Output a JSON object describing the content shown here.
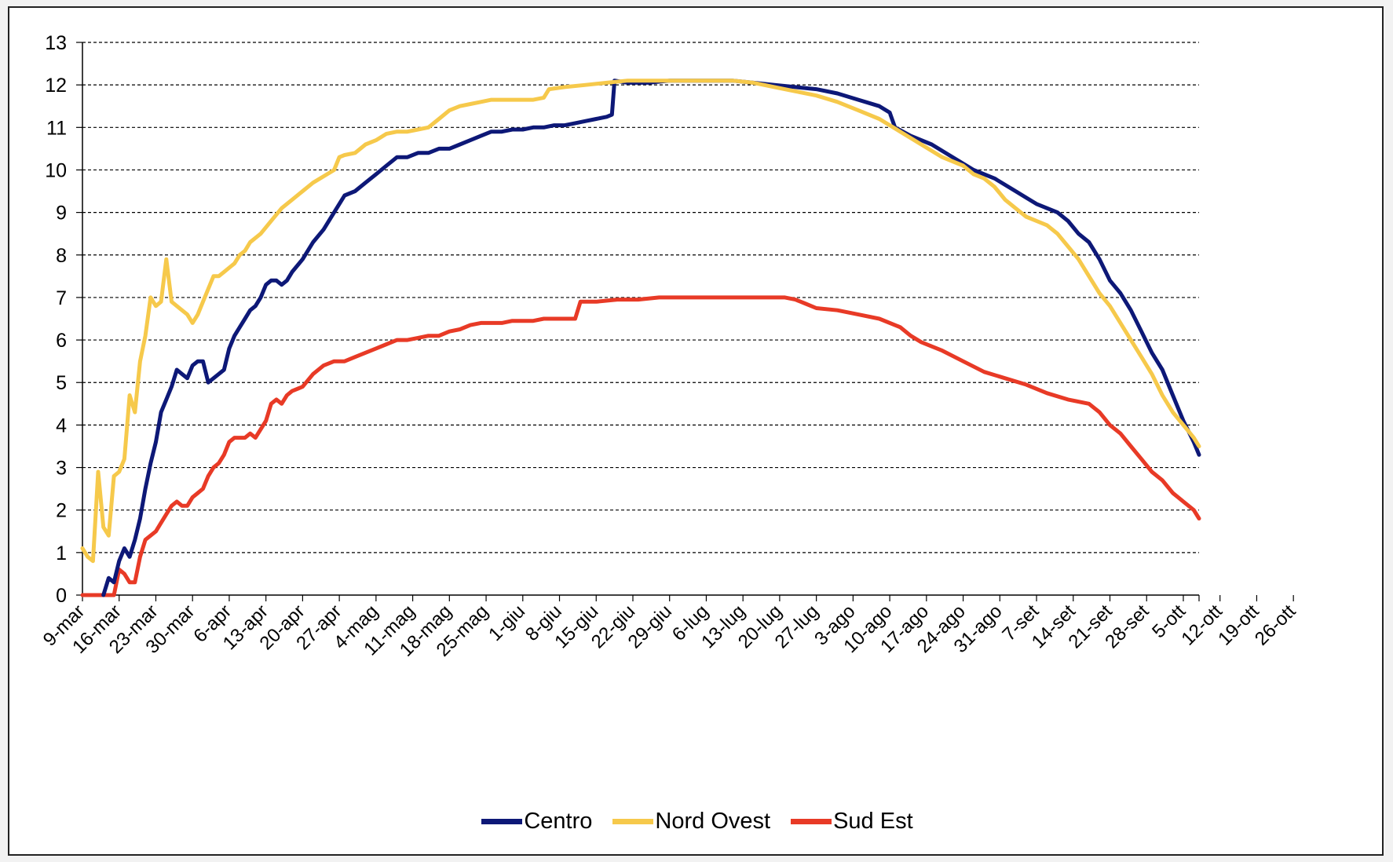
{
  "chart_data": {
    "type": "line",
    "title": "",
    "xlabel": "",
    "ylabel": "",
    "ylim": [
      0,
      13
    ],
    "yticks": [
      0,
      1,
      2,
      3,
      4,
      5,
      6,
      7,
      8,
      9,
      10,
      11,
      12,
      13
    ],
    "grid": "horizontal dashed",
    "legend_position": "bottom",
    "x_start": "9-mar",
    "x_end": "31-ott",
    "xtick_labels": [
      "9-mar",
      "16-mar",
      "23-mar",
      "30-mar",
      "6-apr",
      "13-apr",
      "20-apr",
      "27-apr",
      "4-mag",
      "11-mag",
      "18-mag",
      "25-mag",
      "1-giu",
      "8-giu",
      "15-giu",
      "22-giu",
      "29-giu",
      "6-lug",
      "13-lug",
      "20-lug",
      "27-lug",
      "3-ago",
      "10-ago",
      "17-ago",
      "24-ago",
      "31-ago",
      "7-set",
      "14-set",
      "21-set",
      "28-set",
      "5-ott",
      "12-ott",
      "19-ott",
      "26-ott"
    ],
    "series": [
      {
        "name": "Centro",
        "color": "#0d1877",
        "points": [
          [
            4,
            0
          ],
          [
            5,
            0.4
          ],
          [
            6,
            0.3
          ],
          [
            7,
            0.8
          ],
          [
            8,
            1.1
          ],
          [
            9,
            0.9
          ],
          [
            10,
            1.3
          ],
          [
            11,
            1.8
          ],
          [
            12,
            2.5
          ],
          [
            13,
            3.1
          ],
          [
            14,
            3.6
          ],
          [
            15,
            4.3
          ],
          [
            16,
            4.6
          ],
          [
            17,
            4.9
          ],
          [
            18,
            5.3
          ],
          [
            19,
            5.2
          ],
          [
            20,
            5.1
          ],
          [
            21,
            5.4
          ],
          [
            22,
            5.5
          ],
          [
            23,
            5.5
          ],
          [
            24,
            5.0
          ],
          [
            25,
            5.1
          ],
          [
            26,
            5.2
          ],
          [
            27,
            5.3
          ],
          [
            28,
            5.8
          ],
          [
            29,
            6.1
          ],
          [
            30,
            6.3
          ],
          [
            31,
            6.5
          ],
          [
            32,
            6.7
          ],
          [
            33,
            6.8
          ],
          [
            34,
            7.0
          ],
          [
            35,
            7.3
          ],
          [
            36,
            7.4
          ],
          [
            37,
            7.4
          ],
          [
            38,
            7.3
          ],
          [
            39,
            7.4
          ],
          [
            40,
            7.6
          ],
          [
            42,
            7.9
          ],
          [
            44,
            8.3
          ],
          [
            46,
            8.6
          ],
          [
            48,
            9.0
          ],
          [
            50,
            9.4
          ],
          [
            52,
            9.5
          ],
          [
            54,
            9.7
          ],
          [
            56,
            9.9
          ],
          [
            58,
            10.1
          ],
          [
            60,
            10.3
          ],
          [
            62,
            10.3
          ],
          [
            64,
            10.4
          ],
          [
            66,
            10.4
          ],
          [
            68,
            10.5
          ],
          [
            70,
            10.5
          ],
          [
            72,
            10.6
          ],
          [
            74,
            10.7
          ],
          [
            76,
            10.8
          ],
          [
            78,
            10.9
          ],
          [
            80,
            10.9
          ],
          [
            82,
            10.95
          ],
          [
            84,
            10.95
          ],
          [
            86,
            11.0
          ],
          [
            88,
            11.0
          ],
          [
            90,
            11.05
          ],
          [
            92,
            11.05
          ],
          [
            94,
            11.1
          ],
          [
            96,
            11.15
          ],
          [
            98,
            11.2
          ],
          [
            100,
            11.25
          ],
          [
            101,
            11.3
          ],
          [
            101.5,
            12.1
          ],
          [
            104,
            12.05
          ],
          [
            108,
            12.05
          ],
          [
            112,
            12.1
          ],
          [
            116,
            12.1
          ],
          [
            120,
            12.1
          ],
          [
            124,
            12.1
          ],
          [
            128,
            12.05
          ],
          [
            132,
            12.0
          ],
          [
            136,
            11.95
          ],
          [
            140,
            11.9
          ],
          [
            144,
            11.8
          ],
          [
            148,
            11.65
          ],
          [
            152,
            11.5
          ],
          [
            154,
            11.35
          ],
          [
            155,
            11.0
          ],
          [
            158,
            10.8
          ],
          [
            162,
            10.6
          ],
          [
            166,
            10.3
          ],
          [
            170,
            10.0
          ],
          [
            174,
            9.8
          ],
          [
            178,
            9.5
          ],
          [
            182,
            9.2
          ],
          [
            186,
            9.0
          ],
          [
            188,
            8.8
          ],
          [
            190,
            8.5
          ],
          [
            192,
            8.3
          ],
          [
            194,
            7.9
          ],
          [
            196,
            7.4
          ],
          [
            198,
            7.1
          ],
          [
            200,
            6.7
          ],
          [
            202,
            6.2
          ],
          [
            204,
            5.7
          ],
          [
            206,
            5.3
          ],
          [
            208,
            4.7
          ],
          [
            210,
            4.1
          ],
          [
            212,
            3.6
          ],
          [
            213,
            3.3
          ]
        ]
      },
      {
        "name": "Nord Ovest",
        "color": "#f6c94b",
        "points": [
          [
            0,
            1.1
          ],
          [
            1,
            0.9
          ],
          [
            2,
            0.8
          ],
          [
            3,
            2.9
          ],
          [
            4,
            1.6
          ],
          [
            5,
            1.4
          ],
          [
            6,
            2.8
          ],
          [
            7,
            2.9
          ],
          [
            8,
            3.2
          ],
          [
            9,
            4.7
          ],
          [
            10,
            4.3
          ],
          [
            11,
            5.5
          ],
          [
            12,
            6.1
          ],
          [
            13,
            7.0
          ],
          [
            14,
            6.8
          ],
          [
            15,
            6.9
          ],
          [
            16,
            7.9
          ],
          [
            17,
            6.9
          ],
          [
            18,
            6.8
          ],
          [
            19,
            6.7
          ],
          [
            20,
            6.6
          ],
          [
            21,
            6.4
          ],
          [
            22,
            6.6
          ],
          [
            23,
            6.9
          ],
          [
            24,
            7.2
          ],
          [
            25,
            7.5
          ],
          [
            26,
            7.5
          ],
          [
            27,
            7.6
          ],
          [
            28,
            7.7
          ],
          [
            29,
            7.8
          ],
          [
            30,
            8.0
          ],
          [
            31,
            8.1
          ],
          [
            32,
            8.3
          ],
          [
            34,
            8.5
          ],
          [
            36,
            8.8
          ],
          [
            38,
            9.1
          ],
          [
            40,
            9.3
          ],
          [
            42,
            9.5
          ],
          [
            44,
            9.7
          ],
          [
            46,
            9.85
          ],
          [
            48,
            10.0
          ],
          [
            49,
            10.3
          ],
          [
            50,
            10.35
          ],
          [
            52,
            10.4
          ],
          [
            54,
            10.6
          ],
          [
            56,
            10.7
          ],
          [
            58,
            10.85
          ],
          [
            60,
            10.9
          ],
          [
            62,
            10.9
          ],
          [
            64,
            10.95
          ],
          [
            66,
            11.0
          ],
          [
            68,
            11.2
          ],
          [
            70,
            11.4
          ],
          [
            72,
            11.5
          ],
          [
            74,
            11.55
          ],
          [
            76,
            11.6
          ],
          [
            78,
            11.65
          ],
          [
            80,
            11.65
          ],
          [
            82,
            11.65
          ],
          [
            84,
            11.65
          ],
          [
            86,
            11.65
          ],
          [
            88,
            11.7
          ],
          [
            89,
            11.9
          ],
          [
            92,
            11.95
          ],
          [
            96,
            12.0
          ],
          [
            100,
            12.05
          ],
          [
            104,
            12.1
          ],
          [
            108,
            12.1
          ],
          [
            112,
            12.1
          ],
          [
            116,
            12.1
          ],
          [
            120,
            12.1
          ],
          [
            124,
            12.1
          ],
          [
            128,
            12.05
          ],
          [
            132,
            11.95
          ],
          [
            136,
            11.85
          ],
          [
            140,
            11.75
          ],
          [
            144,
            11.6
          ],
          [
            148,
            11.4
          ],
          [
            152,
            11.2
          ],
          [
            156,
            10.9
          ],
          [
            160,
            10.6
          ],
          [
            164,
            10.3
          ],
          [
            168,
            10.1
          ],
          [
            170,
            9.9
          ],
          [
            172,
            9.8
          ],
          [
            174,
            9.6
          ],
          [
            176,
            9.3
          ],
          [
            178,
            9.1
          ],
          [
            180,
            8.9
          ],
          [
            182,
            8.8
          ],
          [
            184,
            8.7
          ],
          [
            186,
            8.5
          ],
          [
            188,
            8.2
          ],
          [
            190,
            7.9
          ],
          [
            192,
            7.5
          ],
          [
            194,
            7.1
          ],
          [
            196,
            6.8
          ],
          [
            198,
            6.4
          ],
          [
            200,
            6.0
          ],
          [
            202,
            5.6
          ],
          [
            204,
            5.2
          ],
          [
            206,
            4.7
          ],
          [
            208,
            4.3
          ],
          [
            210,
            4.0
          ],
          [
            212,
            3.7
          ],
          [
            213,
            3.5
          ]
        ]
      },
      {
        "name": "Sud Est",
        "color": "#e83a26",
        "points": [
          [
            0,
            0
          ],
          [
            5,
            0
          ],
          [
            6,
            0
          ],
          [
            7,
            0.6
          ],
          [
            8,
            0.5
          ],
          [
            9,
            0.3
          ],
          [
            10,
            0.3
          ],
          [
            11,
            0.9
          ],
          [
            12,
            1.3
          ],
          [
            13,
            1.4
          ],
          [
            14,
            1.5
          ],
          [
            15,
            1.7
          ],
          [
            16,
            1.9
          ],
          [
            17,
            2.1
          ],
          [
            18,
            2.2
          ],
          [
            19,
            2.1
          ],
          [
            20,
            2.1
          ],
          [
            21,
            2.3
          ],
          [
            22,
            2.4
          ],
          [
            23,
            2.5
          ],
          [
            24,
            2.8
          ],
          [
            25,
            3.0
          ],
          [
            26,
            3.1
          ],
          [
            27,
            3.3
          ],
          [
            28,
            3.6
          ],
          [
            29,
            3.7
          ],
          [
            30,
            3.7
          ],
          [
            31,
            3.7
          ],
          [
            32,
            3.8
          ],
          [
            33,
            3.7
          ],
          [
            34,
            3.9
          ],
          [
            35,
            4.1
          ],
          [
            36,
            4.5
          ],
          [
            37,
            4.6
          ],
          [
            38,
            4.5
          ],
          [
            39,
            4.7
          ],
          [
            40,
            4.8
          ],
          [
            42,
            4.9
          ],
          [
            44,
            5.2
          ],
          [
            46,
            5.4
          ],
          [
            48,
            5.5
          ],
          [
            50,
            5.5
          ],
          [
            52,
            5.6
          ],
          [
            54,
            5.7
          ],
          [
            56,
            5.8
          ],
          [
            58,
            5.9
          ],
          [
            60,
            6.0
          ],
          [
            62,
            6.0
          ],
          [
            64,
            6.05
          ],
          [
            66,
            6.1
          ],
          [
            68,
            6.1
          ],
          [
            70,
            6.2
          ],
          [
            72,
            6.25
          ],
          [
            74,
            6.35
          ],
          [
            76,
            6.4
          ],
          [
            78,
            6.4
          ],
          [
            80,
            6.4
          ],
          [
            82,
            6.45
          ],
          [
            84,
            6.45
          ],
          [
            86,
            6.45
          ],
          [
            88,
            6.5
          ],
          [
            90,
            6.5
          ],
          [
            92,
            6.5
          ],
          [
            94,
            6.5
          ],
          [
            95,
            6.9
          ],
          [
            98,
            6.9
          ],
          [
            102,
            6.95
          ],
          [
            106,
            6.95
          ],
          [
            110,
            7.0
          ],
          [
            114,
            7.0
          ],
          [
            118,
            7.0
          ],
          [
            122,
            7.0
          ],
          [
            126,
            7.0
          ],
          [
            130,
            7.0
          ],
          [
            134,
            7.0
          ],
          [
            136,
            6.95
          ],
          [
            138,
            6.85
          ],
          [
            140,
            6.75
          ],
          [
            144,
            6.7
          ],
          [
            148,
            6.6
          ],
          [
            152,
            6.5
          ],
          [
            156,
            6.3
          ],
          [
            158,
            6.1
          ],
          [
            160,
            5.95
          ],
          [
            162,
            5.85
          ],
          [
            164,
            5.75
          ],
          [
            168,
            5.5
          ],
          [
            172,
            5.25
          ],
          [
            176,
            5.1
          ],
          [
            180,
            4.95
          ],
          [
            184,
            4.75
          ],
          [
            188,
            4.6
          ],
          [
            192,
            4.5
          ],
          [
            194,
            4.3
          ],
          [
            196,
            4.0
          ],
          [
            198,
            3.8
          ],
          [
            200,
            3.5
          ],
          [
            202,
            3.2
          ],
          [
            204,
            2.9
          ],
          [
            206,
            2.7
          ],
          [
            208,
            2.4
          ],
          [
            210,
            2.2
          ],
          [
            212,
            2.0
          ],
          [
            213,
            1.8
          ]
        ]
      }
    ]
  },
  "legend": [
    {
      "label": "Centro",
      "color": "#0d1877"
    },
    {
      "label": "Nord Ovest",
      "color": "#f6c94b"
    },
    {
      "label": "Sud Est",
      "color": "#e83a26"
    }
  ]
}
